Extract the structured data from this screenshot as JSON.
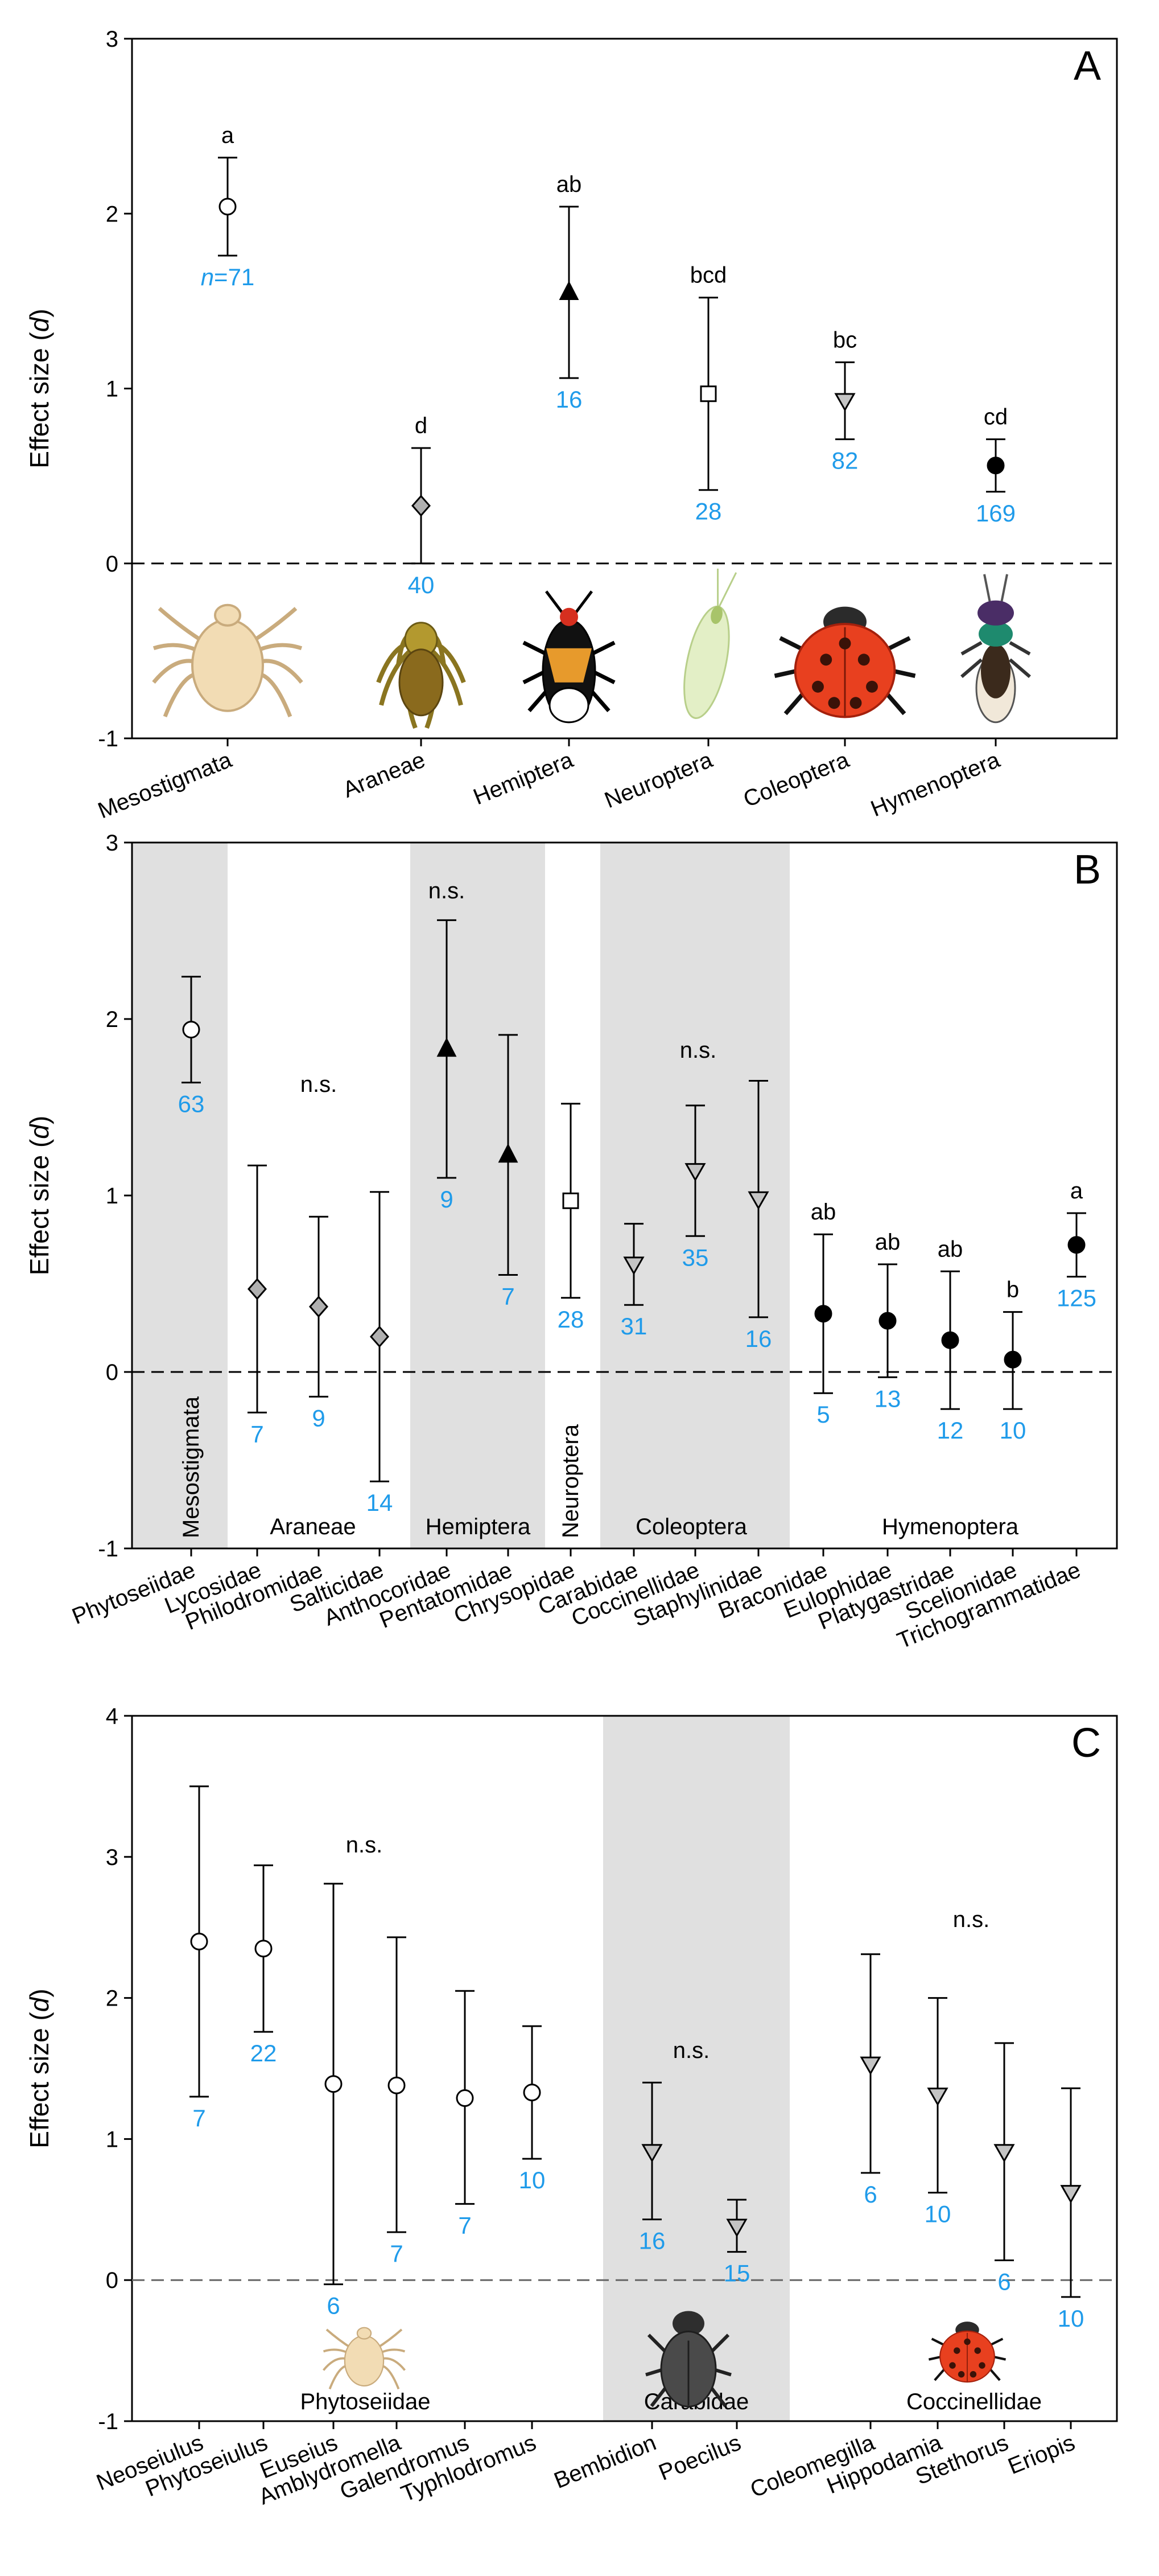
{
  "colors": {
    "count_label": "#1f9bea",
    "group_shade": "#e0e0e0",
    "axis": "#000000",
    "diamond_fill": "#b0b0b0",
    "triangle_fill": "#c4c4c4"
  },
  "chart_data": [
    {
      "panel": "A",
      "type": "scatter",
      "title": "A",
      "ylabel": "Effect size (d)",
      "ylim": [
        -1,
        3
      ],
      "yticks": [
        "3",
        "2",
        "1",
        "0",
        "-1"
      ],
      "baseline": "dashed zero line",
      "categories": [
        "Mesostigmata",
        "Araneae",
        "Hemiptera",
        "Neuroptera",
        "Coleoptera",
        "Hymenoptera"
      ],
      "points": [
        {
          "label": "Mesostigmata",
          "mean": 2.04,
          "lower": 1.76,
          "upper": 2.32,
          "n": "n=71",
          "letter": "a",
          "marker": "circle-open"
        },
        {
          "label": "Araneae",
          "mean": 0.33,
          "lower": 0.0,
          "upper": 0.66,
          "n": "40",
          "letter": "d",
          "marker": "diamond-gray"
        },
        {
          "label": "Hemiptera",
          "mean": 1.55,
          "lower": 1.06,
          "upper": 2.04,
          "n": "16",
          "letter": "ab",
          "marker": "triangle-up-black"
        },
        {
          "label": "Neuroptera",
          "mean": 0.97,
          "lower": 0.42,
          "upper": 1.52,
          "n": "28",
          "letter": "bcd",
          "marker": "square-open"
        },
        {
          "label": "Coleoptera",
          "mean": 0.93,
          "lower": 0.71,
          "upper": 1.15,
          "n": "82",
          "letter": "bc",
          "marker": "triangle-down-gray"
        },
        {
          "label": "Hymenoptera",
          "mean": 0.56,
          "lower": 0.41,
          "upper": 0.71,
          "n": "169",
          "letter": "cd",
          "marker": "circle-black"
        }
      ]
    },
    {
      "panel": "B",
      "type": "scatter",
      "title": "B",
      "ylabel": "Effect size (d)",
      "ylim": [
        -1,
        3
      ],
      "yticks": [
        "3",
        "2",
        "1",
        "0",
        "-1"
      ],
      "categories": [
        "Phytoseiidae",
        "Lycosidae",
        "Philodromidae",
        "Salticidae",
        "Anthocoridae",
        "Pentatomidae",
        "Chrysopidae",
        "Carabidae",
        "Coccinellidae",
        "Staphylinidae",
        "Braconidae",
        "Eulophidae",
        "Platygastridae",
        "Scelionidae",
        "Trichogrammatidae"
      ],
      "groups": [
        {
          "name": "Mesostigmata",
          "vertical": true,
          "shaded": true
        },
        {
          "name": "Araneae",
          "vertical": false,
          "shaded": false
        },
        {
          "name": "Hemiptera",
          "vertical": false,
          "shaded": true
        },
        {
          "name": "Neuroptera",
          "vertical": true,
          "shaded": false
        },
        {
          "name": "Coleoptera",
          "vertical": false,
          "shaded": true
        },
        {
          "name": "Hymenoptera",
          "vertical": false,
          "shaded": false
        }
      ],
      "group_letters": [
        "n.s.",
        "n.s.",
        "n.s."
      ],
      "points": [
        {
          "label": "Phytoseiidae",
          "mean": 1.94,
          "lower": 1.64,
          "upper": 2.24,
          "n": "63",
          "letter": "",
          "marker": "circle-open"
        },
        {
          "label": "Lycosidae",
          "mean": 0.47,
          "lower": -0.23,
          "upper": 1.17,
          "n": "7",
          "letter": "",
          "marker": "diamond-gray"
        },
        {
          "label": "Philodromidae",
          "mean": 0.37,
          "lower": -0.14,
          "upper": 0.88,
          "n": "9",
          "letter": "",
          "marker": "diamond-gray"
        },
        {
          "label": "Salticidae",
          "mean": 0.2,
          "lower": -0.62,
          "upper": 1.02,
          "n": "14",
          "letter": "",
          "marker": "diamond-gray"
        },
        {
          "label": "Anthocoridae",
          "mean": 1.83,
          "lower": 1.1,
          "upper": 2.56,
          "n": "9",
          "letter": "",
          "marker": "triangle-up-black"
        },
        {
          "label": "Pentatomidae",
          "mean": 1.23,
          "lower": 0.55,
          "upper": 1.91,
          "n": "7",
          "letter": "",
          "marker": "triangle-up-black"
        },
        {
          "label": "Chrysopidae",
          "mean": 0.97,
          "lower": 0.42,
          "upper": 1.52,
          "n": "28",
          "letter": "",
          "marker": "square-open"
        },
        {
          "label": "Carabidae",
          "mean": 0.61,
          "lower": 0.38,
          "upper": 0.84,
          "n": "31",
          "letter": "",
          "marker": "triangle-down-gray"
        },
        {
          "label": "Coccinellidae",
          "mean": 1.14,
          "lower": 0.77,
          "upper": 1.51,
          "n": "35",
          "letter": "",
          "marker": "triangle-down-gray"
        },
        {
          "label": "Staphylinidae",
          "mean": 0.98,
          "lower": 0.31,
          "upper": 1.65,
          "n": "16",
          "letter": "",
          "marker": "triangle-down-gray"
        },
        {
          "label": "Braconidae",
          "mean": 0.33,
          "lower": -0.12,
          "upper": 0.78,
          "n": "5",
          "letter": "ab",
          "marker": "circle-black"
        },
        {
          "label": "Eulophidae",
          "mean": 0.29,
          "lower": -0.03,
          "upper": 0.61,
          "n": "13",
          "letter": "ab",
          "marker": "circle-black"
        },
        {
          "label": "Platygastridae",
          "mean": 0.18,
          "lower": -0.21,
          "upper": 0.57,
          "n": "12",
          "letter": "ab",
          "marker": "circle-black"
        },
        {
          "label": "Scelionidae",
          "mean": 0.07,
          "lower": -0.21,
          "upper": 0.34,
          "n": "10",
          "letter": "b",
          "marker": "circle-black"
        },
        {
          "label": "Trichogrammatidae",
          "mean": 0.72,
          "lower": 0.54,
          "upper": 0.9,
          "n": "125",
          "letter": "a",
          "marker": "circle-black"
        }
      ]
    },
    {
      "panel": "C",
      "type": "scatter",
      "title": "C",
      "ylabel": "Effect size (d)",
      "ylim": [
        -1,
        4
      ],
      "yticks": [
        "4",
        "3",
        "2",
        "1",
        "0",
        "-1"
      ],
      "categories": [
        "Neoseiulus",
        "Phytoseiulus",
        "Euseius",
        "Amblydromella",
        "Galendromus",
        "Typhlodromus",
        "Bembidion",
        "Poecilus",
        "Coleomegilla",
        "Hippodamia",
        "Stethorus",
        "Eriopis"
      ],
      "groups": [
        {
          "name": "Phytoseiidae",
          "shaded": false
        },
        {
          "name": "Carabidae",
          "shaded": true
        },
        {
          "name": "Coccinellidae",
          "shaded": false
        }
      ],
      "group_letters": [
        "n.s.",
        "n.s.",
        "n.s."
      ],
      "points": [
        {
          "label": "Neoseiulus",
          "mean": 2.4,
          "lower": 1.3,
          "upper": 3.5,
          "n": "7",
          "marker": "circle-open"
        },
        {
          "label": "Phytoseiulus",
          "mean": 2.35,
          "lower": 1.76,
          "upper": 2.94,
          "n": "22",
          "marker": "circle-open"
        },
        {
          "label": "Euseius",
          "mean": 1.39,
          "lower": -0.03,
          "upper": 2.81,
          "n": "6",
          "marker": "circle-open"
        },
        {
          "label": "Amblydromella",
          "mean": 1.38,
          "lower": 0.34,
          "upper": 2.43,
          "n": "7",
          "marker": "circle-open"
        },
        {
          "label": "Galendromus",
          "mean": 1.29,
          "lower": 0.54,
          "upper": 2.05,
          "n": "7",
          "marker": "circle-open"
        },
        {
          "label": "Typhlodromus",
          "mean": 1.33,
          "lower": 0.86,
          "upper": 1.8,
          "n": "10",
          "marker": "circle-open"
        },
        {
          "label": "Bembidion",
          "mean": 0.91,
          "lower": 0.43,
          "upper": 1.4,
          "n": "16",
          "marker": "triangle-down-gray"
        },
        {
          "label": "Poecilus",
          "mean": 0.38,
          "lower": 0.2,
          "upper": 0.57,
          "n": "15",
          "marker": "triangle-down-gray"
        },
        {
          "label": "Coleomegilla",
          "mean": 1.53,
          "lower": 0.76,
          "upper": 2.31,
          "n": "6",
          "marker": "triangle-down-gray"
        },
        {
          "label": "Hippodamia",
          "mean": 1.31,
          "lower": 0.62,
          "upper": 2.0,
          "n": "10",
          "marker": "triangle-down-gray"
        },
        {
          "label": "Stethorus",
          "mean": 0.91,
          "lower": 0.14,
          "upper": 1.68,
          "n": "6",
          "marker": "triangle-down-gray"
        },
        {
          "label": "Eriopis",
          "mean": 0.62,
          "lower": -0.12,
          "upper": 1.36,
          "n": "10",
          "marker": "triangle-down-gray"
        }
      ]
    }
  ]
}
